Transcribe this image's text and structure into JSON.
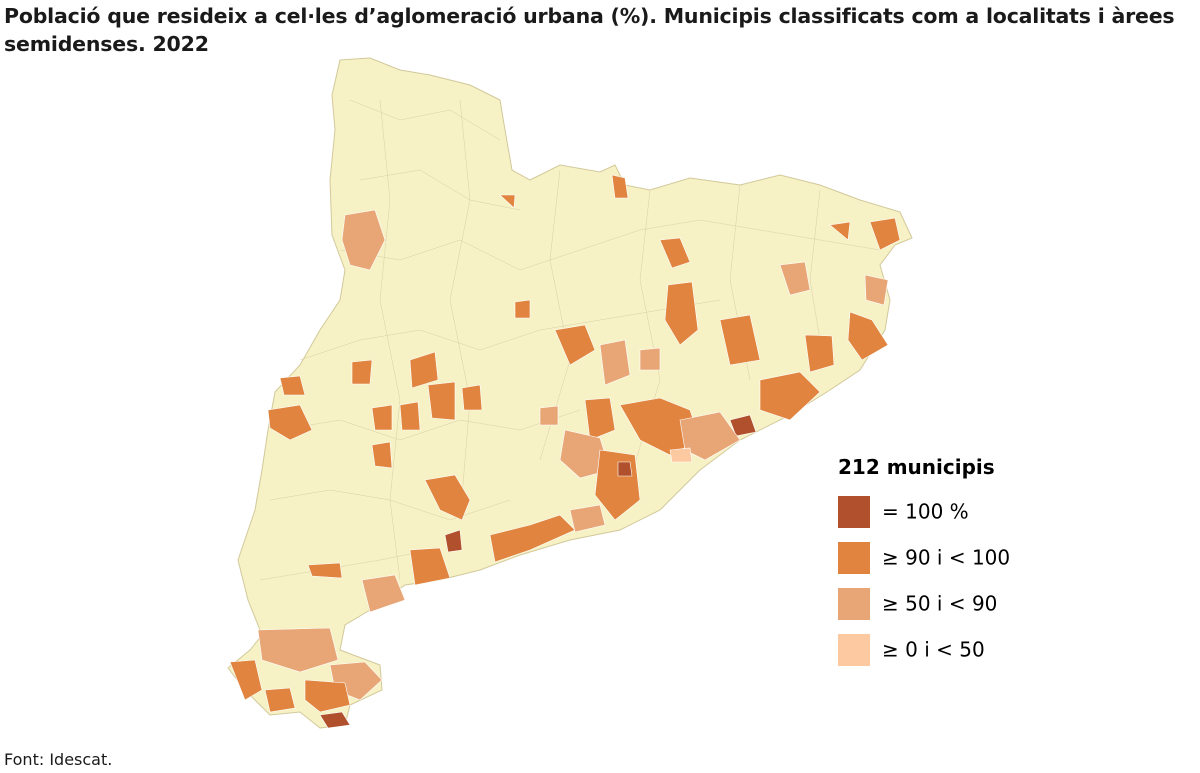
{
  "title": "Població que resideix a cel·les d’aglomeració urbana (%). Municipis classificats com a localitats i àrees semidenses. 2022",
  "legend": {
    "title": "212 municipis",
    "items": [
      {
        "label": "= 100 %",
        "color": "#b0502c"
      },
      {
        "label": "≥ 90 i < 100",
        "color": "#e0843f"
      },
      {
        "label": "≥ 50 i < 90",
        "color": "#e8a676"
      },
      {
        "label": "≥ 0 i < 50",
        "color": "#fdc9a0"
      }
    ]
  },
  "source": "Font: Idescat."
}
